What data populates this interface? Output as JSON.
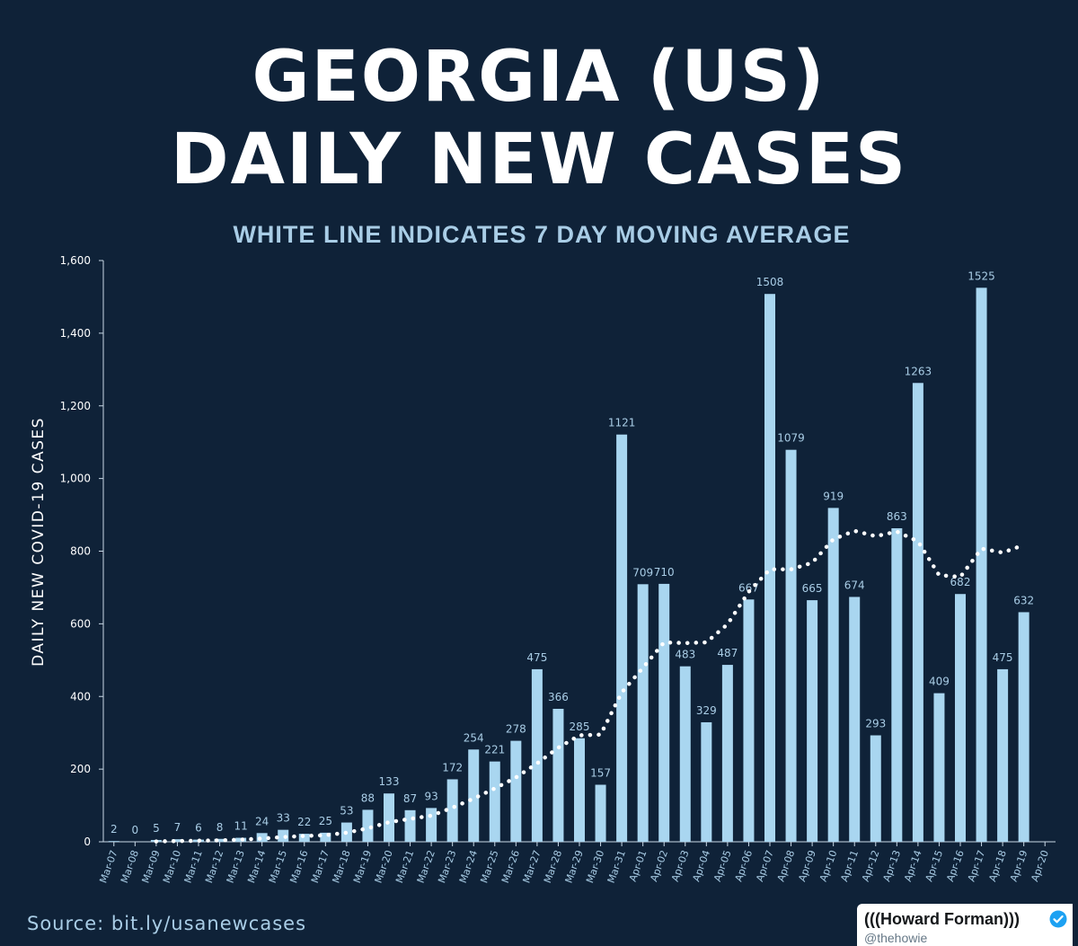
{
  "header": {
    "title_line1": "GEORGIA (US)",
    "title_line2": "DAILY NEW CASES",
    "subtitle": "WHITE LINE INDICATES 7 DAY MOVING AVERAGE"
  },
  "footer": {
    "source": "Source: bit.ly/usanewcases",
    "credit_name": "(((Howard Forman)))",
    "credit_handle": "@thehowie",
    "verified_icon": "verified-badge-icon"
  },
  "colors": {
    "background": "#0f2238",
    "bar": "#a9d6f0",
    "label": "#a9cde6",
    "line": "#ffffff",
    "axis": "#c8d8e6"
  },
  "chart_data": {
    "type": "bar",
    "title": "GEORGIA (US) DAILY NEW CASES",
    "subtitle": "WHITE LINE INDICATES 7 DAY MOVING AVERAGE",
    "xlabel": "",
    "ylabel": "DAILY NEW COVID-19 CASES",
    "ylim": [
      0,
      1600
    ],
    "yticks": [
      0,
      200,
      400,
      600,
      800,
      1000,
      1200,
      1400,
      1600
    ],
    "ytick_labels": [
      "0",
      "200",
      "400",
      "600",
      "800",
      "1,000",
      "1,200",
      "1,400",
      "1,600"
    ],
    "grid": false,
    "categories": [
      "Mar-07",
      "Mar-08",
      "Mar-09",
      "Mar-10",
      "Mar-11",
      "Mar-12",
      "Mar-13",
      "Mar-14",
      "Mar-15",
      "Mar-16",
      "Mar-17",
      "Mar-18",
      "Mar-19",
      "Mar-20",
      "Mar-21",
      "Mar-22",
      "Mar-23",
      "Mar-24",
      "Mar-25",
      "Mar-26",
      "Mar-27",
      "Mar-28",
      "Mar-29",
      "Mar-30",
      "Mar-31",
      "Apr-01",
      "Apr-02",
      "Apr-03",
      "Apr-04",
      "Apr-05",
      "Apr-06",
      "Apr-07",
      "Apr-08",
      "Apr-09",
      "Apr-10",
      "Apr-11",
      "Apr-12",
      "Apr-13",
      "Apr-14",
      "Apr-15",
      "Apr-16",
      "Apr-17",
      "Apr-18",
      "Apr-19",
      "Apr-20"
    ],
    "series": [
      {
        "name": "Daily new cases",
        "type": "bar",
        "values": [
          2,
          0,
          5,
          7,
          6,
          8,
          11,
          24,
          33,
          22,
          25,
          53,
          88,
          133,
          87,
          93,
          172,
          254,
          221,
          278,
          475,
          366,
          285,
          157,
          1121,
          709,
          710,
          483,
          329,
          487,
          667,
          1508,
          1079,
          665,
          919,
          674,
          293,
          863,
          1263,
          409,
          682,
          1525,
          475,
          632,
          null
        ],
        "labels": [
          "2",
          "0",
          "5",
          "7",
          "6",
          "8",
          "11",
          "24",
          "33",
          "22",
          "25",
          "53",
          "88",
          "133",
          "87",
          "93",
          "172",
          "254",
          "221",
          "278",
          "475",
          "366",
          "285",
          "157",
          "1121",
          "709",
          "710",
          "483",
          "329",
          "487",
          "667",
          "1508",
          "1079",
          "665",
          "919",
          "674",
          "293",
          "863",
          "1263",
          "409",
          "682",
          "1525",
          "475",
          "632",
          ""
        ]
      },
      {
        "name": "7 day moving average",
        "type": "line",
        "style": "dotted",
        "values": [
          null,
          null,
          1,
          2,
          3,
          4,
          6,
          9,
          13,
          16,
          18,
          25,
          37,
          54,
          63,
          72,
          94,
          119,
          147,
          177,
          216,
          259,
          293,
          295,
          411,
          479,
          549,
          547,
          549,
          599,
          688,
          750,
          750,
          768,
          833,
          856,
          841,
          854,
          827,
          734,
          729,
          807,
          796,
          817,
          null
        ]
      }
    ]
  }
}
